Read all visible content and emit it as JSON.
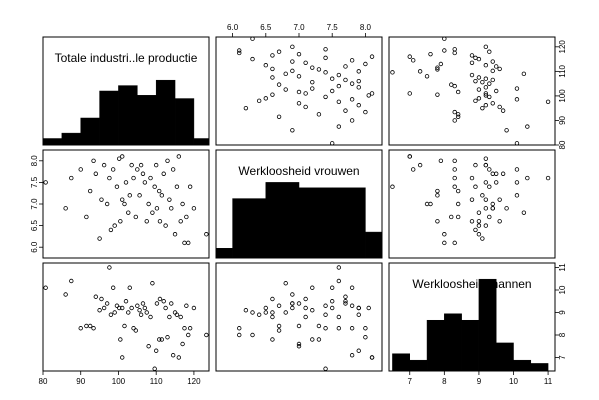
{
  "chart_data": {
    "type": "scatter",
    "variables": [
      {
        "name": "Totale industri..le productie",
        "range": [
          80,
          124
        ],
        "ticks": [
          80,
          90,
          100,
          110,
          120
        ],
        "histogram": {
          "breaks": [
            80,
            85,
            90,
            95,
            100,
            105,
            110,
            115,
            120,
            124
          ],
          "relative_heights": [
            0.06,
            0.11,
            0.25,
            0.5,
            0.55,
            0.46,
            0.6,
            0.43,
            0.06
          ]
        }
      },
      {
        "name": "Werkloosheid vrouwen",
        "range": [
          5.75,
          8.25
        ],
        "ticks": [
          6.0,
          6.5,
          7.0,
          7.5,
          8.0
        ],
        "histogram": {
          "breaks": [
            5.75,
            6.0,
            6.5,
            7.0,
            7.5,
            8.0,
            8.25
          ],
          "relative_heights": [
            0.09,
            0.55,
            0.7,
            0.65,
            0.65,
            0.24
          ]
        }
      },
      {
        "name": "Werkloosheid mannen",
        "range": [
          6.4,
          11.2
        ],
        "ticks": [
          7,
          8,
          9,
          10,
          11
        ],
        "histogram": {
          "breaks": [
            6.5,
            7.0,
            7.5,
            8.0,
            8.5,
            9.0,
            9.5,
            10.0,
            10.5,
            11.0
          ],
          "relative_heights": [
            0.16,
            0.1,
            0.47,
            0.53,
            0.47,
            0.85,
            0.26,
            0.1,
            0.07
          ]
        }
      }
    ],
    "observations": [
      [
        80.7,
        7.5,
        10.1
      ],
      [
        86.0,
        6.9,
        9.8
      ],
      [
        87.5,
        7.6,
        10.4
      ],
      [
        90.0,
        7.8,
        8.3
      ],
      [
        91.5,
        6.7,
        8.4
      ],
      [
        92.5,
        7.3,
        8.4
      ],
      [
        93.4,
        8.0,
        8.3
      ],
      [
        94.0,
        7.7,
        9.7
      ],
      [
        95.0,
        6.2,
        9.1
      ],
      [
        95.5,
        7.1,
        9.6
      ],
      [
        96.2,
        7.9,
        9.2
      ],
      [
        97.0,
        7.0,
        9.4
      ],
      [
        97.6,
        7.6,
        11.0
      ],
      [
        98.0,
        6.4,
        8.9
      ],
      [
        98.6,
        7.8,
        10.1
      ],
      [
        99.0,
        6.5,
        9.0
      ],
      [
        99.6,
        7.4,
        9.3
      ],
      [
        100.2,
        8.05,
        9.2
      ],
      [
        100.5,
        6.6,
        7.8
      ],
      [
        101.0,
        7.1,
        9.2
      ],
      [
        101.0,
        8.1,
        7.0
      ],
      [
        101.6,
        7.0,
        8.4
      ],
      [
        102.0,
        7.5,
        9.5
      ],
      [
        102.6,
        6.8,
        9.0
      ],
      [
        103.0,
        7.2,
        10.1
      ],
      [
        103.5,
        7.9,
        9.2
      ],
      [
        104.0,
        7.6,
        8.3
      ],
      [
        104.6,
        6.7,
        8.2
      ],
      [
        105.0,
        7.8,
        9.3
      ],
      [
        105.6,
        7.2,
        9.1
      ],
      [
        106.0,
        7.9,
        8.9
      ],
      [
        106.5,
        7.7,
        9.4
      ],
      [
        107.0,
        7.5,
        9.2
      ],
      [
        107.5,
        6.6,
        9.0
      ],
      [
        108.0,
        7.0,
        7.5
      ],
      [
        108.5,
        7.6,
        8.8
      ],
      [
        109.0,
        6.8,
        10.3
      ],
      [
        109.6,
        7.4,
        6.5
      ],
      [
        110.0,
        7.9,
        7.3
      ],
      [
        110.2,
        6.9,
        9.4
      ],
      [
        110.8,
        7.3,
        7.8
      ],
      [
        111.0,
        6.6,
        9.6
      ],
      [
        111.5,
        7.2,
        7.8
      ],
      [
        112.0,
        7.7,
        9.5
      ],
      [
        112.5,
        6.5,
        9.2
      ],
      [
        113.0,
        8.0,
        7.9
      ],
      [
        113.5,
        7.1,
        8.8
      ],
      [
        114.0,
        6.9,
        9.4
      ],
      [
        114.5,
        7.8,
        7.1
      ],
      [
        115.0,
        6.3,
        9.0
      ],
      [
        115.5,
        7.4,
        8.9
      ],
      [
        116.0,
        8.1,
        7.0
      ],
      [
        116.5,
        6.6,
        8.8
      ],
      [
        117.0,
        7.0,
        7.6
      ],
      [
        117.5,
        6.1,
        8.3
      ],
      [
        118.0,
        6.7,
        9.3
      ],
      [
        118.5,
        6.1,
        8.0
      ],
      [
        119.0,
        7.4,
        8.3
      ],
      [
        120.0,
        6.9,
        9.2
      ],
      [
        123.3,
        6.3,
        8.0
      ]
    ],
    "grid": false,
    "legend": "none"
  }
}
